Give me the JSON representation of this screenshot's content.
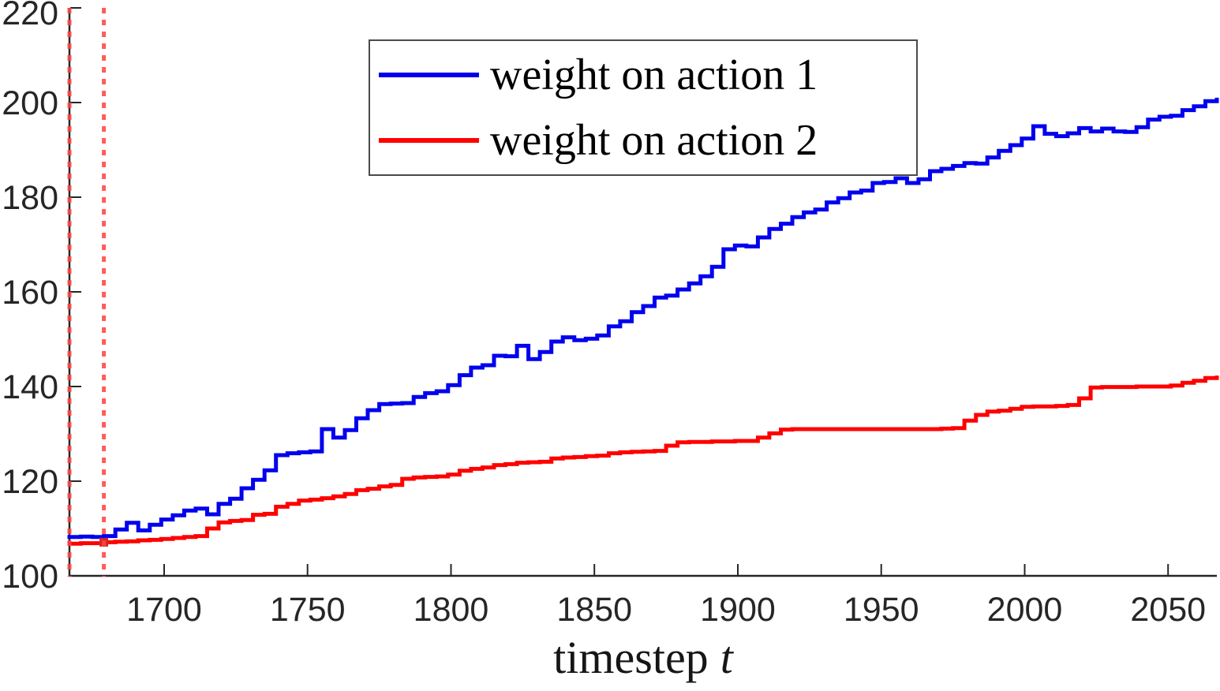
{
  "chart_data": {
    "type": "line",
    "title": "",
    "xlabel": "timestep t",
    "xlabel_text": "timestep",
    "xlabel_var": "t",
    "ylabel": "",
    "xlim": [
      1667,
      2067
    ],
    "ylim": [
      100,
      220
    ],
    "xticks": [
      1700,
      1750,
      1800,
      1850,
      1900,
      1950,
      2000,
      2050
    ],
    "yticks": [
      100,
      120,
      140,
      160,
      180,
      200,
      220
    ],
    "grid": false,
    "legend_position": "top-left-inside",
    "axis_color": "#262626",
    "x": [
      1667,
      1671,
      1675,
      1679,
      1683,
      1687,
      1691,
      1695,
      1699,
      1703,
      1707,
      1711,
      1715,
      1719,
      1723,
      1727,
      1731,
      1735,
      1739,
      1743,
      1747,
      1751,
      1755,
      1759,
      1763,
      1767,
      1771,
      1775,
      1779,
      1783,
      1787,
      1791,
      1795,
      1799,
      1803,
      1807,
      1811,
      1815,
      1819,
      1823,
      1827,
      1831,
      1835,
      1839,
      1843,
      1847,
      1851,
      1855,
      1859,
      1863,
      1867,
      1871,
      1875,
      1879,
      1883,
      1887,
      1891,
      1895,
      1899,
      1903,
      1907,
      1911,
      1915,
      1919,
      1923,
      1927,
      1931,
      1935,
      1939,
      1943,
      1947,
      1951,
      1955,
      1959,
      1963,
      1967,
      1971,
      1975,
      1979,
      1983,
      1987,
      1991,
      1995,
      1999,
      2003,
      2007,
      2011,
      2015,
      2019,
      2023,
      2027,
      2031,
      2035,
      2039,
      2043,
      2047,
      2051,
      2055,
      2059,
      2063,
      2067
    ],
    "series": [
      {
        "name": "weight on action 1",
        "color": "#0000ee",
        "values": [
          108.2,
          108.3,
          108.2,
          108.4,
          109.8,
          111.2,
          109.6,
          110.8,
          111.9,
          112.8,
          113.8,
          114.2,
          113.0,
          115.2,
          116.3,
          118.5,
          120.3,
          122.3,
          125.5,
          125.9,
          126.1,
          126.3,
          131.0,
          129.2,
          130.8,
          133.3,
          135.0,
          136.3,
          136.4,
          136.5,
          137.8,
          138.6,
          139.0,
          140.3,
          142.4,
          144.0,
          144.5,
          146.5,
          146.4,
          148.6,
          145.8,
          147.3,
          149.5,
          150.4,
          149.8,
          150.1,
          150.8,
          152.7,
          153.8,
          155.7,
          157.0,
          158.8,
          159.2,
          160.5,
          161.8,
          163.3,
          165.3,
          169.0,
          169.8,
          169.6,
          171.5,
          173.3,
          174.4,
          175.8,
          176.8,
          177.4,
          178.9,
          179.8,
          181.0,
          181.4,
          183.0,
          183.2,
          184.0,
          183.0,
          183.8,
          185.5,
          186.0,
          186.6,
          187.2,
          187.1,
          188.4,
          189.8,
          191.0,
          192.4,
          195.0,
          193.4,
          192.9,
          193.5,
          194.6,
          193.9,
          194.5,
          193.9,
          193.8,
          194.8,
          196.4,
          197.0,
          197.2,
          198.4,
          199.2,
          200.3,
          200.6
        ]
      },
      {
        "name": "weight on action 2",
        "color": "#ff0000",
        "values": [
          106.8,
          106.9,
          106.9,
          107.1,
          107.2,
          107.3,
          107.5,
          107.6,
          107.8,
          108.0,
          108.2,
          108.4,
          110.0,
          111.3,
          111.6,
          111.8,
          112.9,
          113.1,
          114.6,
          115.2,
          115.9,
          116.1,
          116.4,
          116.8,
          117.3,
          118.1,
          118.4,
          118.9,
          119.2,
          120.5,
          120.8,
          120.9,
          121.0,
          121.4,
          122.2,
          122.6,
          122.9,
          123.4,
          123.6,
          123.9,
          124.0,
          124.1,
          124.8,
          125.0,
          125.1,
          125.3,
          125.4,
          125.9,
          126.1,
          126.2,
          126.3,
          126.4,
          127.5,
          128.2,
          128.3,
          128.3,
          128.4,
          128.4,
          128.5,
          128.5,
          129.2,
          130.1,
          130.9,
          131.0,
          131.0,
          131.0,
          131.0,
          131.0,
          131.0,
          131.0,
          131.0,
          131.0,
          131.0,
          131.0,
          131.0,
          131.0,
          131.1,
          131.2,
          132.8,
          134.0,
          134.7,
          134.9,
          135.3,
          135.7,
          135.8,
          135.8,
          135.9,
          136.1,
          137.5,
          139.8,
          139.9,
          139.9,
          139.9,
          140.0,
          140.0,
          140.0,
          140.2,
          140.8,
          141.2,
          141.8,
          141.9
        ]
      }
    ],
    "vlines": {
      "style": "dotted",
      "color": "#ff4545",
      "t_values": [
        1667,
        1679
      ]
    },
    "vline_marker": {
      "t": 1679,
      "value": 107.1,
      "color": "#d42525"
    }
  }
}
